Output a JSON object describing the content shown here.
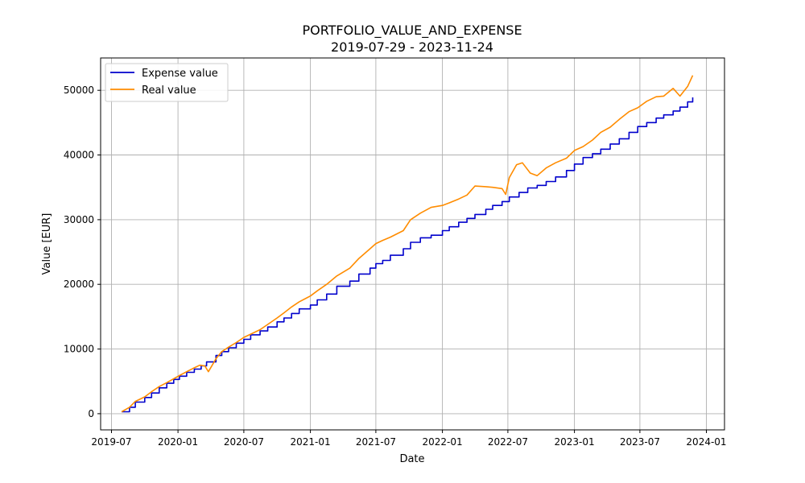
{
  "chart_data": {
    "type": "line",
    "title": "PORTFOLIO_VALUE_AND_EXPENSE",
    "subtitle": "2019-07-29 - 2023-11-24",
    "xlabel": "Date",
    "ylabel": "Value [EUR]",
    "xlim": [
      "2019-06-01",
      "2024-02-20"
    ],
    "ylim": [
      -2500,
      55000
    ],
    "x_ticks": [
      {
        "date": "2019-07-01",
        "label": "2019-07"
      },
      {
        "date": "2020-01-01",
        "label": "2020-01"
      },
      {
        "date": "2020-07-01",
        "label": "2020-07"
      },
      {
        "date": "2021-01-01",
        "label": "2021-01"
      },
      {
        "date": "2021-07-01",
        "label": "2021-07"
      },
      {
        "date": "2022-01-01",
        "label": "2022-01"
      },
      {
        "date": "2022-07-01",
        "label": "2022-07"
      },
      {
        "date": "2023-01-01",
        "label": "2023-01"
      },
      {
        "date": "2023-07-01",
        "label": "2023-07"
      },
      {
        "date": "2024-01-01",
        "label": "2024-01"
      }
    ],
    "y_ticks": [
      0,
      10000,
      20000,
      30000,
      40000,
      50000
    ],
    "grid": true,
    "legend_position": "top-left",
    "series": [
      {
        "name": "Expense value",
        "color": "#0000cc",
        "step": true,
        "x": [
          "2019-07-29",
          "2019-08-20",
          "2019-09-05",
          "2019-10-01",
          "2019-10-20",
          "2019-11-10",
          "2019-12-01",
          "2019-12-20",
          "2020-01-05",
          "2020-01-25",
          "2020-02-15",
          "2020-03-05",
          "2020-03-20",
          "2020-04-15",
          "2020-05-01",
          "2020-05-20",
          "2020-06-10",
          "2020-07-01",
          "2020-07-20",
          "2020-08-15",
          "2020-09-05",
          "2020-10-01",
          "2020-10-20",
          "2020-11-10",
          "2020-12-01",
          "2021-01-01",
          "2021-01-20",
          "2021-02-15",
          "2021-03-15",
          "2021-04-20",
          "2021-05-15",
          "2021-06-15",
          "2021-07-01",
          "2021-07-20",
          "2021-08-10",
          "2021-09-15",
          "2021-10-05",
          "2021-11-01",
          "2021-12-01",
          "2022-01-01",
          "2022-01-20",
          "2022-02-15",
          "2022-03-10",
          "2022-04-01",
          "2022-05-01",
          "2022-05-20",
          "2022-06-15",
          "2022-07-05",
          "2022-08-01",
          "2022-08-25",
          "2022-09-20",
          "2022-10-15",
          "2022-11-10",
          "2022-12-10",
          "2023-01-01",
          "2023-01-25",
          "2023-02-20",
          "2023-03-15",
          "2023-04-10",
          "2023-05-05",
          "2023-06-01",
          "2023-06-25",
          "2023-07-20",
          "2023-08-15",
          "2023-09-05",
          "2023-10-01",
          "2023-10-20",
          "2023-11-10",
          "2023-11-24"
        ],
        "values": [
          300,
          1000,
          1800,
          2500,
          3200,
          4000,
          4700,
          5300,
          5800,
          6400,
          6900,
          7400,
          8000,
          9000,
          9600,
          10200,
          10900,
          11500,
          12200,
          12800,
          13400,
          14200,
          14800,
          15500,
          16200,
          16800,
          17600,
          18500,
          19700,
          20500,
          21600,
          22500,
          23200,
          23700,
          24500,
          25500,
          26500,
          27200,
          27600,
          28300,
          28900,
          29600,
          30200,
          30800,
          31600,
          32200,
          32800,
          33500,
          34200,
          34900,
          35300,
          35900,
          36600,
          37600,
          38600,
          39600,
          40200,
          40900,
          41700,
          42500,
          43500,
          44400,
          45000,
          45700,
          46200,
          46800,
          47400,
          48200,
          48900
        ]
      },
      {
        "name": "Real value",
        "color": "#ff8c00",
        "step": false,
        "x": [
          "2019-07-29",
          "2019-08-20",
          "2019-09-05",
          "2019-10-01",
          "2019-10-20",
          "2019-11-10",
          "2019-12-01",
          "2019-12-20",
          "2020-01-05",
          "2020-01-25",
          "2020-02-15",
          "2020-03-01",
          "2020-03-15",
          "2020-03-25",
          "2020-04-15",
          "2020-05-01",
          "2020-05-20",
          "2020-06-10",
          "2020-07-01",
          "2020-07-20",
          "2020-08-15",
          "2020-09-05",
          "2020-10-01",
          "2020-10-20",
          "2020-11-10",
          "2020-12-01",
          "2021-01-01",
          "2021-01-20",
          "2021-02-15",
          "2021-03-15",
          "2021-04-20",
          "2021-05-15",
          "2021-06-15",
          "2021-07-01",
          "2021-07-20",
          "2021-08-10",
          "2021-09-15",
          "2021-10-05",
          "2021-11-01",
          "2021-12-01",
          "2022-01-01",
          "2022-01-20",
          "2022-02-15",
          "2022-03-10",
          "2022-04-01",
          "2022-05-01",
          "2022-05-20",
          "2022-06-15",
          "2022-06-25",
          "2022-07-05",
          "2022-07-25",
          "2022-08-10",
          "2022-09-01",
          "2022-09-20",
          "2022-10-15",
          "2022-11-10",
          "2022-12-10",
          "2023-01-01",
          "2023-01-25",
          "2023-02-20",
          "2023-03-15",
          "2023-04-10",
          "2023-05-05",
          "2023-06-01",
          "2023-06-25",
          "2023-07-20",
          "2023-08-15",
          "2023-09-05",
          "2023-10-01",
          "2023-10-20",
          "2023-11-10",
          "2023-11-24"
        ],
        "values": [
          300,
          1000,
          1900,
          2600,
          3400,
          4200,
          4800,
          5400,
          5900,
          6500,
          7100,
          7500,
          7400,
          6500,
          8500,
          9600,
          10300,
          11000,
          11800,
          12300,
          13000,
          13800,
          14800,
          15600,
          16500,
          17300,
          18200,
          19000,
          20000,
          21300,
          22500,
          24000,
          25500,
          26300,
          26800,
          27300,
          28300,
          30000,
          31000,
          31900,
          32200,
          32600,
          33200,
          33800,
          35200,
          35100,
          35000,
          34800,
          33900,
          36500,
          38500,
          38800,
          37200,
          36800,
          38000,
          38800,
          39500,
          40700,
          41300,
          42300,
          43500,
          44300,
          45500,
          46700,
          47300,
          48300,
          49000,
          49100,
          50300,
          49100,
          50600,
          52300
        ]
      }
    ]
  }
}
